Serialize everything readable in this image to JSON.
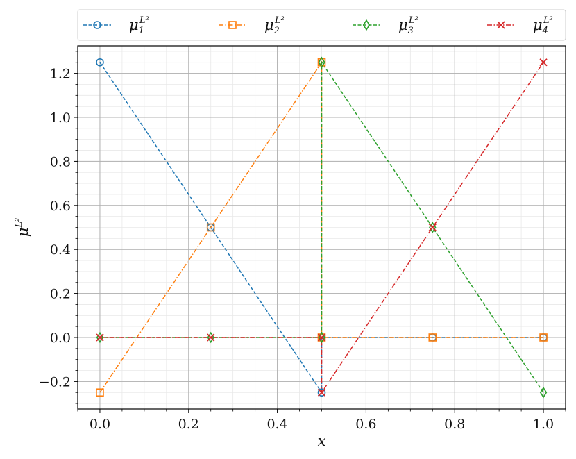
{
  "chart_data": {
    "type": "line",
    "xlabel": "x",
    "ylabel": "μ^{L²}",
    "ylabel_base": "μ",
    "ylabel_sup": "L²",
    "xlim": [
      -0.05,
      1.05
    ],
    "ylim": [
      -0.325,
      1.325
    ],
    "x_ticks": [
      0.0,
      0.2,
      0.4,
      0.6,
      0.8,
      1.0
    ],
    "x_tick_labels": [
      "0.0",
      "0.2",
      "0.4",
      "0.6",
      "0.8",
      "1.0"
    ],
    "y_ticks": [
      -0.2,
      0.0,
      0.2,
      0.4,
      0.6,
      0.8,
      1.0,
      1.2
    ],
    "y_tick_labels": [
      "−0.2",
      "0.0",
      "0.2",
      "0.4",
      "0.6",
      "0.8",
      "1.0",
      "1.2"
    ],
    "grid": true,
    "minor_grid": true,
    "legend_position": "top, outside, 4 columns",
    "series": [
      {
        "name": "μ_1^{L²}",
        "label_base": "μ",
        "label_sub": "1",
        "label_sup": "L²",
        "color": "#1f77b4",
        "marker": "circle",
        "linestyle": "dashed",
        "x": [
          0.0,
          0.25,
          0.5,
          0.5,
          0.75,
          1.0
        ],
        "y": [
          1.25,
          0.5,
          -0.25,
          0.0,
          0.0,
          0.0
        ]
      },
      {
        "name": "μ_2^{L²}",
        "label_base": "μ",
        "label_sub": "2",
        "label_sup": "L²",
        "color": "#ff7f0e",
        "marker": "square",
        "linestyle": "dashdot",
        "x": [
          0.0,
          0.25,
          0.5,
          0.5,
          0.75,
          1.0
        ],
        "y": [
          -0.25,
          0.5,
          1.25,
          0.0,
          0.0,
          0.0
        ]
      },
      {
        "name": "μ_3^{L²}",
        "label_base": "μ",
        "label_sub": "3",
        "label_sup": "L²",
        "color": "#2ca02c",
        "marker": "diamond",
        "linestyle": "dashed",
        "x": [
          0.0,
          0.25,
          0.5,
          0.5,
          0.75,
          1.0
        ],
        "y": [
          0.0,
          0.0,
          0.0,
          1.25,
          0.5,
          -0.25
        ]
      },
      {
        "name": "μ_4^{L²}",
        "label_base": "μ",
        "label_sub": "4",
        "label_sup": "L²",
        "color": "#d62728",
        "marker": "x",
        "linestyle": "dashdot",
        "x": [
          0.0,
          0.25,
          0.5,
          0.5,
          0.75,
          1.0
        ],
        "y": [
          0.0,
          0.0,
          0.0,
          -0.25,
          0.5,
          1.25
        ]
      }
    ]
  }
}
